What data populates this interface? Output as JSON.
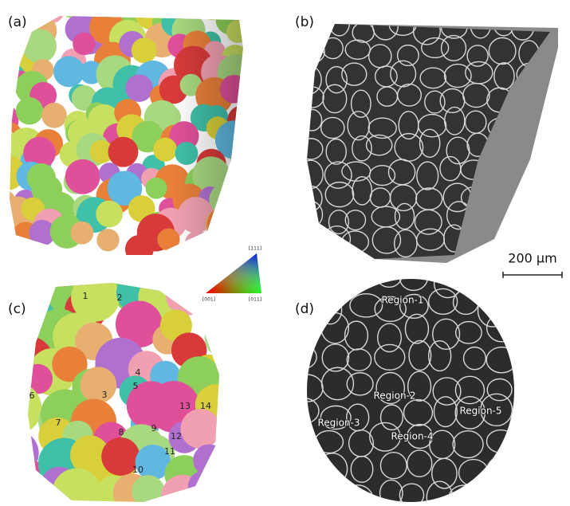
{
  "panels": [
    {
      "label": "(a)"
    },
    {
      "label": "(b)"
    },
    {
      "label": "(c)"
    },
    {
      "label": "(d)"
    }
  ],
  "scale_bar": "200 µm",
  "ipf_key": {
    "top": "[111]",
    "left": "[001]",
    "right": "[011]"
  },
  "grain_numbers": [
    "1",
    "2",
    "3",
    "4",
    "5",
    "6",
    "7",
    "8",
    "9",
    "10",
    "11",
    "12",
    "13",
    "14"
  ],
  "regions": [
    "Region-1",
    "Region-2",
    "Region-3",
    "Region-4",
    "Region-5"
  ]
}
